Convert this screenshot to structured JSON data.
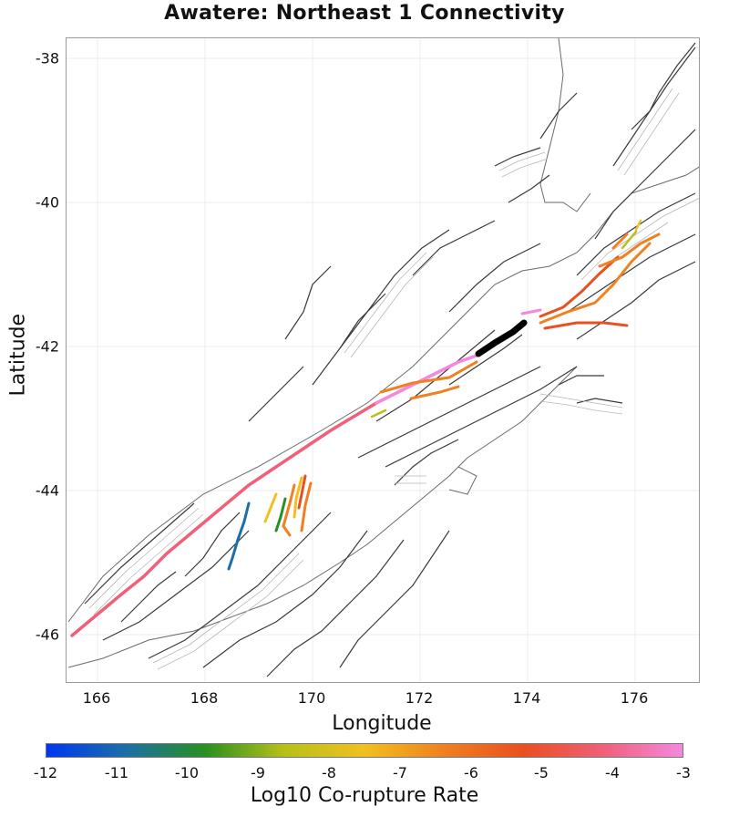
{
  "title": "Awatere: Northeast 1 Connectivity",
  "x_axis": {
    "label": "Longitude",
    "ticks": [
      "166",
      "168",
      "170",
      "172",
      "174",
      "176"
    ]
  },
  "y_axis": {
    "label": "Latitude",
    "ticks": [
      "-38",
      "-40",
      "-42",
      "-44",
      "-46"
    ]
  },
  "colorbar": {
    "label": "Log10 Co-rupture Rate",
    "ticks": [
      "-12",
      "-11",
      "-10",
      "-9",
      "-8",
      "-7",
      "-6",
      "-5",
      "-4",
      "-3"
    ],
    "colors": [
      "#0036f0",
      "#1b6fa6",
      "#2a9020",
      "#b8c01a",
      "#f0c020",
      "#f08020",
      "#e85020",
      "#f06078",
      "#f488e0"
    ]
  },
  "highlight_color": "#000000",
  "map_extent": {
    "lon_min": 165.5,
    "lon_max": 177.3,
    "lat_min": -46.65,
    "lat_max": -37.7
  }
}
